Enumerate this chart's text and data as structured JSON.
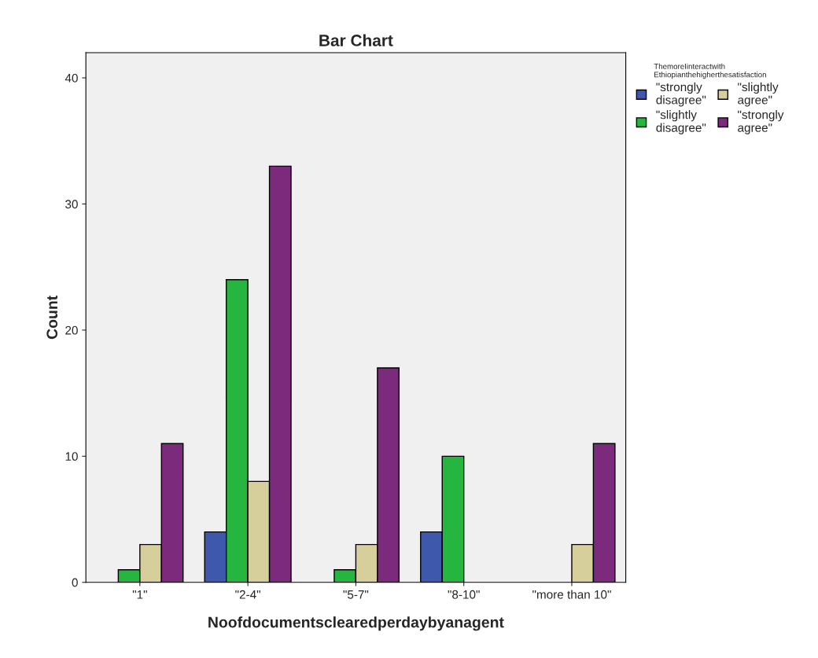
{
  "chart_data": {
    "type": "bar",
    "title": "Bar Chart",
    "xlabel": "Noofdocumentsclearedperdaybyanagent",
    "ylabel": "Count",
    "legend_title": "ThemoreIinteractwith\nEthiopianthehigherthesatisfaction",
    "categories": [
      "\"1\"",
      "\"2-4\"",
      "\"5-7\"",
      "\"8-10\"",
      "\"more than 10\""
    ],
    "series": [
      {
        "name": "\"strongly\ndisagree\"",
        "color": "#3e58ac",
        "values": [
          null,
          4,
          null,
          4,
          null
        ]
      },
      {
        "name": "\"slightly\ndisagree\"",
        "color": "#26b53e",
        "values": [
          1,
          24,
          1,
          10,
          null
        ]
      },
      {
        "name": "\"slightly\nagree\"",
        "color": "#d7cf9b",
        "values": [
          3,
          8,
          3,
          null,
          3
        ]
      },
      {
        "name": "\"strongly\nagree\"",
        "color": "#7c2a7c",
        "values": [
          11,
          33,
          17,
          null,
          11
        ]
      }
    ],
    "ylim": [
      0,
      42
    ],
    "yticks": [
      0,
      10,
      20,
      30,
      40
    ],
    "grid": false,
    "legend": "top right"
  }
}
